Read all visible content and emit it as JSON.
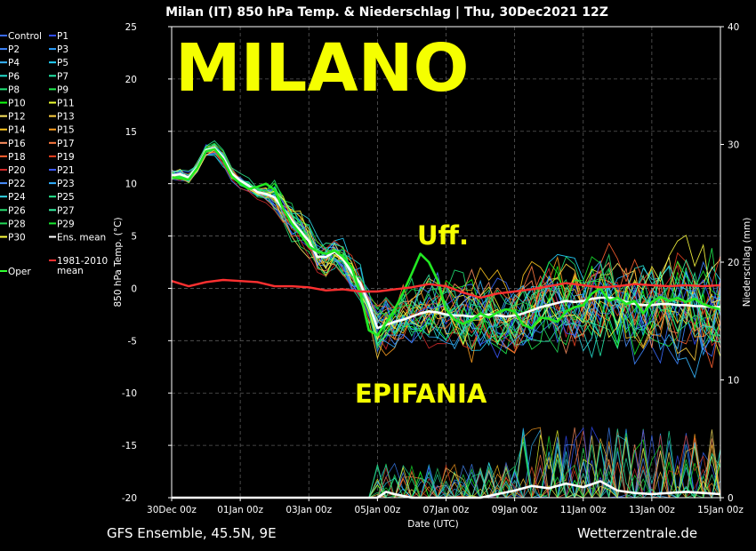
{
  "chart_data": {
    "type": "line",
    "title": "Milan  (IT)  850 hPa Temp. & Niederschlag | Thu, 30Dec2021 12Z",
    "ylabel_left": "850 hPa Temp. (°C)",
    "ylabel_right": "Niederschlag (mm)",
    "xlabel": "Date (UTC)",
    "y_left_range": [
      -20,
      25
    ],
    "y_left_ticks": [
      25,
      20,
      15,
      10,
      5,
      0,
      -5,
      -10,
      -15,
      -20
    ],
    "y_right_range": [
      0,
      40
    ],
    "y_right_ticks": [
      40,
      30,
      20,
      10,
      0
    ],
    "x_range_hours": [
      0,
      384
    ],
    "x_ticks": [
      {
        "h": 0,
        "label": "30Dec 00z"
      },
      {
        "h": 48,
        "label": "01Jan 00z"
      },
      {
        "h": 96,
        "label": "03Jan 00z"
      },
      {
        "h": 144,
        "label": "05Jan 00z"
      },
      {
        "h": 192,
        "label": "07Jan 00z"
      },
      {
        "h": 240,
        "label": "09Jan 00z"
      },
      {
        "h": 288,
        "label": "11Jan 00z"
      },
      {
        "h": 336,
        "label": "13Jan 00z"
      },
      {
        "h": 384,
        "label": "15Jan 00z"
      }
    ],
    "grid": true,
    "legend": {
      "placement": "left",
      "entries": [
        {
          "name": "Control",
          "color": "#3a6bff"
        },
        {
          "name": "P1",
          "color": "#2f4cff"
        },
        {
          "name": "P2",
          "color": "#3f86ff"
        },
        {
          "name": "P3",
          "color": "#2aa0ff"
        },
        {
          "name": "P4",
          "color": "#37b8ff"
        },
        {
          "name": "P5",
          "color": "#23d4ff"
        },
        {
          "name": "P6",
          "color": "#24e0d0"
        },
        {
          "name": "P7",
          "color": "#22e8a8"
        },
        {
          "name": "P8",
          "color": "#20e878"
        },
        {
          "name": "P9",
          "color": "#20f050"
        },
        {
          "name": "P10",
          "color": "#10ff10"
        },
        {
          "name": "P11",
          "color": "#f0ff30"
        },
        {
          "name": "P12",
          "color": "#ffe860"
        },
        {
          "name": "P13",
          "color": "#ffd040"
        },
        {
          "name": "P14",
          "color": "#ffc820"
        },
        {
          "name": "P15",
          "color": "#ffa020"
        },
        {
          "name": "P16",
          "color": "#ff9060"
        },
        {
          "name": "P17",
          "color": "#ff7a40"
        },
        {
          "name": "P18",
          "color": "#ff6030"
        },
        {
          "name": "P19",
          "color": "#e84020"
        },
        {
          "name": "P20",
          "color": "#d02a2a"
        },
        {
          "name": "P21",
          "color": "#3c58ff"
        },
        {
          "name": "P22",
          "color": "#4a90ff"
        },
        {
          "name": "P23",
          "color": "#30b0ff"
        },
        {
          "name": "P24",
          "color": "#34d8e8"
        },
        {
          "name": "P25",
          "color": "#28e890"
        },
        {
          "name": "P26",
          "color": "#26e070"
        },
        {
          "name": "P27",
          "color": "#34f0a0"
        },
        {
          "name": "P28",
          "color": "#22d858"
        },
        {
          "name": "P29",
          "color": "#18e830"
        },
        {
          "name": "P30",
          "color": "#ffff40"
        },
        {
          "name": "Ens. mean",
          "color": "#ffffff"
        },
        {
          "name": "1981-2010 mean",
          "color": "#ff3030"
        },
        {
          "name": "Oper",
          "color": "#30ff30"
        }
      ]
    },
    "series": [
      {
        "name": "Ens. mean",
        "axis": "left",
        "points": [
          [
            0,
            10.8
          ],
          [
            6,
            10.9
          ],
          [
            12,
            10.6
          ],
          [
            18,
            11.6
          ],
          [
            24,
            13.2
          ],
          [
            30,
            13.4
          ],
          [
            36,
            12.5
          ],
          [
            42,
            11.0
          ],
          [
            48,
            10.3
          ],
          [
            54,
            9.8
          ],
          [
            60,
            9.2
          ],
          [
            66,
            9.0
          ],
          [
            72,
            8.7
          ],
          [
            78,
            7.6
          ],
          [
            84,
            6.5
          ],
          [
            90,
            5.5
          ],
          [
            96,
            4.5
          ],
          [
            102,
            3.0
          ],
          [
            108,
            3.0
          ],
          [
            114,
            3.5
          ],
          [
            120,
            2.8
          ],
          [
            126,
            1.5
          ],
          [
            132,
            0.5
          ],
          [
            138,
            -1.5
          ],
          [
            144,
            -3.8
          ],
          [
            150,
            -3.5
          ],
          [
            156,
            -3.2
          ],
          [
            162,
            -3.0
          ],
          [
            168,
            -2.7
          ],
          [
            174,
            -2.4
          ],
          [
            180,
            -2.2
          ],
          [
            186,
            -2.3
          ],
          [
            192,
            -2.5
          ],
          [
            198,
            -2.6
          ],
          [
            204,
            -2.6
          ],
          [
            210,
            -2.7
          ],
          [
            216,
            -2.6
          ],
          [
            222,
            -2.5
          ],
          [
            228,
            -2.6
          ],
          [
            234,
            -2.7
          ],
          [
            240,
            -2.6
          ],
          [
            246,
            -2.4
          ],
          [
            252,
            -2.1
          ],
          [
            258,
            -1.8
          ],
          [
            264,
            -1.6
          ],
          [
            270,
            -1.4
          ],
          [
            276,
            -1.2
          ],
          [
            282,
            -1.3
          ],
          [
            288,
            -1.2
          ],
          [
            294,
            -1.0
          ],
          [
            300,
            -0.9
          ],
          [
            306,
            -0.9
          ],
          [
            312,
            -1.0
          ],
          [
            318,
            -1.3
          ],
          [
            324,
            -1.5
          ],
          [
            330,
            -1.6
          ],
          [
            336,
            -1.6
          ],
          [
            342,
            -1.5
          ],
          [
            348,
            -1.5
          ],
          [
            354,
            -1.6
          ],
          [
            360,
            -1.6
          ],
          [
            366,
            -1.7
          ],
          [
            372,
            -1.7
          ],
          [
            378,
            -1.8
          ],
          [
            384,
            -1.8
          ]
        ]
      },
      {
        "name": "Oper",
        "axis": "left",
        "points": [
          [
            0,
            10.6
          ],
          [
            12,
            10.4
          ],
          [
            18,
            11.5
          ],
          [
            24,
            13.1
          ],
          [
            30,
            13.3
          ],
          [
            36,
            12.3
          ],
          [
            42,
            10.7
          ],
          [
            48,
            10.0
          ],
          [
            54,
            9.5
          ],
          [
            60,
            9.7
          ],
          [
            66,
            10.0
          ],
          [
            72,
            9.4
          ],
          [
            78,
            7.6
          ],
          [
            84,
            6.2
          ],
          [
            90,
            5.2
          ],
          [
            96,
            4.0
          ],
          [
            102,
            3.5
          ],
          [
            108,
            3.3
          ],
          [
            114,
            3.6
          ],
          [
            120,
            3.0
          ],
          [
            126,
            2.0
          ],
          [
            132,
            -0.5
          ],
          [
            138,
            -4.0
          ],
          [
            144,
            -4.5
          ],
          [
            150,
            -3.3
          ],
          [
            156,
            -2.0
          ],
          [
            162,
            -0.4
          ],
          [
            168,
            1.4
          ],
          [
            174,
            3.3
          ],
          [
            180,
            2.5
          ],
          [
            186,
            0.8
          ],
          [
            192,
            -2.0
          ],
          [
            198,
            -3.0
          ],
          [
            204,
            -3.4
          ],
          [
            210,
            -3.0
          ],
          [
            216,
            -2.4
          ],
          [
            222,
            -2.8
          ],
          [
            228,
            -2.3
          ],
          [
            234,
            -2.0
          ],
          [
            240,
            -2.2
          ],
          [
            246,
            -3.5
          ],
          [
            252,
            -3.8
          ],
          [
            258,
            -2.8
          ],
          [
            264,
            -2.9
          ],
          [
            270,
            -3.2
          ],
          [
            276,
            -2.2
          ],
          [
            282,
            -1.8
          ],
          [
            288,
            -1.6
          ],
          [
            294,
            -0.5
          ],
          [
            300,
            0.0
          ],
          [
            306,
            -1.2
          ],
          [
            312,
            -0.9
          ],
          [
            318,
            -1.5
          ],
          [
            324,
            -1.2
          ],
          [
            330,
            -2.4
          ],
          [
            336,
            -1.3
          ],
          [
            342,
            -0.8
          ],
          [
            348,
            -1.2
          ],
          [
            354,
            -0.9
          ],
          [
            360,
            -1.3
          ],
          [
            366,
            -1.0
          ],
          [
            372,
            -1.5
          ],
          [
            378,
            -1.8
          ],
          [
            384,
            -2.0
          ]
        ]
      },
      {
        "name": "1981-2010 mean",
        "axis": "left",
        "points": [
          [
            0,
            0.7
          ],
          [
            12,
            0.2
          ],
          [
            24,
            0.6
          ],
          [
            36,
            0.8
          ],
          [
            48,
            0.7
          ],
          [
            60,
            0.6
          ],
          [
            72,
            0.2
          ],
          [
            84,
            0.2
          ],
          [
            96,
            0.1
          ],
          [
            108,
            -0.2
          ],
          [
            120,
            -0.1
          ],
          [
            132,
            -0.3
          ],
          [
            144,
            -0.3
          ],
          [
            156,
            -0.1
          ],
          [
            168,
            0.1
          ],
          [
            180,
            0.4
          ],
          [
            192,
            0.2
          ],
          [
            204,
            -0.4
          ],
          [
            216,
            -0.9
          ],
          [
            228,
            -0.5
          ],
          [
            240,
            -0.3
          ],
          [
            252,
            -0.1
          ],
          [
            264,
            0.2
          ],
          [
            276,
            0.5
          ],
          [
            288,
            0.3
          ],
          [
            300,
            0.1
          ],
          [
            312,
            0.2
          ],
          [
            324,
            0.4
          ],
          [
            336,
            0.3
          ],
          [
            348,
            0.2
          ],
          [
            360,
            0.3
          ],
          [
            372,
            0.2
          ],
          [
            384,
            0.3
          ]
        ]
      },
      {
        "name": "Ens. mean",
        "axis": "right",
        "points": [
          [
            0,
            0
          ],
          [
            144,
            0
          ],
          [
            150,
            0.5
          ],
          [
            156,
            0.3
          ],
          [
            168,
            0
          ],
          [
            216,
            0
          ],
          [
            228,
            0.3
          ],
          [
            240,
            0.6
          ],
          [
            252,
            1.0
          ],
          [
            264,
            0.8
          ],
          [
            276,
            1.2
          ],
          [
            288,
            0.9
          ],
          [
            300,
            1.4
          ],
          [
            312,
            0.6
          ],
          [
            324,
            0.4
          ],
          [
            336,
            0.3
          ],
          [
            348,
            0.4
          ],
          [
            360,
            0.5
          ],
          [
            372,
            0.4
          ],
          [
            384,
            0.3
          ]
        ]
      }
    ],
    "annotations": [
      "MILANO",
      "Uff.",
      "EPIFANIA"
    ]
  },
  "footer": {
    "left": "GFS Ensemble, 45.5N, 9E",
    "right": "Wetterzentrale.de"
  },
  "colors": {
    "background": "#000000",
    "annotation": "#f5ff00"
  }
}
